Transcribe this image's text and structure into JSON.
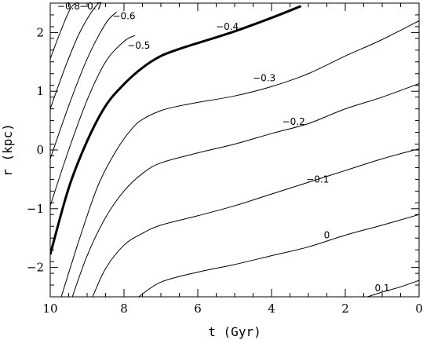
{
  "chart_data": {
    "type": "line",
    "title": "",
    "xlabel": "t (Gyr)",
    "ylabel": "r (kpc)",
    "xlim": [
      10,
      0
    ],
    "ylim": [
      -2.5,
      2.5
    ],
    "x_reversed": true,
    "x_ticks": [
      {
        "value": 10,
        "label": "10"
      },
      {
        "value": 8,
        "label": "8"
      },
      {
        "value": 6,
        "label": "6"
      },
      {
        "value": 4,
        "label": "4"
      },
      {
        "value": 2,
        "label": "2"
      },
      {
        "value": 0,
        "label": "0"
      }
    ],
    "y_ticks": [
      {
        "value": 2,
        "label": "2"
      },
      {
        "value": 1,
        "label": "1"
      },
      {
        "value": 0,
        "label": "0"
      },
      {
        "value": -1,
        "label": "−1"
      },
      {
        "value": -2,
        "label": "−2"
      }
    ],
    "series": [
      {
        "label": "−0.8",
        "label_at": [
          9.5,
          2.6
        ],
        "bold": false,
        "x": [
          10.0,
          9.7,
          9.4,
          9.0
        ],
        "y": [
          1.55,
          2.05,
          2.45,
          2.6
        ]
      },
      {
        "label": "−0.7",
        "label_at": [
          8.9,
          2.6
        ],
        "bold": false,
        "x": [
          10.0,
          9.6,
          9.2,
          8.8,
          8.5
        ],
        "y": [
          0.7,
          1.4,
          2.0,
          2.42,
          2.6
        ]
      },
      {
        "label": "−0.6",
        "label_at": [
          8.0,
          2.28
        ],
        "bold": false,
        "x": [
          10.0,
          9.5,
          9.0,
          8.5,
          8.2
        ],
        "y": [
          -0.15,
          0.75,
          1.55,
          2.15,
          2.35
        ]
      },
      {
        "label": "−0.5",
        "label_at": [
          7.6,
          1.78
        ],
        "bold": false,
        "x": [
          10.0,
          9.5,
          9.0,
          8.5,
          8.0,
          7.7
        ],
        "y": [
          -0.95,
          0.0,
          0.85,
          1.5,
          1.85,
          1.95
        ]
      },
      {
        "label": "−0.4",
        "label_at": [
          5.2,
          2.1
        ],
        "bold": true,
        "x": [
          10.0,
          9.5,
          9.0,
          8.5,
          8.0,
          7.5,
          7.0,
          6.5,
          6.0,
          5.0,
          4.0,
          3.2
        ],
        "y": [
          -1.78,
          -0.65,
          0.15,
          0.75,
          1.12,
          1.4,
          1.6,
          1.72,
          1.82,
          2.02,
          2.25,
          2.45
        ]
      },
      {
        "label": "−0.3",
        "label_at": [
          4.2,
          1.22
        ],
        "bold": false,
        "x": [
          9.7,
          9.2,
          8.7,
          8.2,
          7.8,
          7.5,
          7.0,
          6.5,
          6.0,
          5.0,
          4.0,
          3.0,
          2.0,
          1.0,
          0.0
        ],
        "y": [
          -2.5,
          -1.5,
          -0.6,
          0.0,
          0.35,
          0.52,
          0.67,
          0.75,
          0.81,
          0.92,
          1.08,
          1.3,
          1.6,
          1.88,
          2.2
        ]
      },
      {
        "label": "−0.2",
        "label_at": [
          3.4,
          0.48
        ],
        "bold": false,
        "x": [
          9.4,
          9.0,
          8.5,
          8.0,
          7.5,
          7.0,
          6.0,
          5.0,
          4.0,
          3.0,
          2.0,
          1.0,
          0.0
        ],
        "y": [
          -2.5,
          -1.8,
          -1.15,
          -0.7,
          -0.4,
          -0.22,
          -0.05,
          0.1,
          0.28,
          0.45,
          0.7,
          0.9,
          1.13
        ]
      },
      {
        "label": "−0.1",
        "label_at": [
          2.75,
          -0.5
        ],
        "bold": false,
        "x": [
          8.85,
          8.5,
          8.0,
          7.5,
          7.0,
          6.0,
          5.0,
          4.0,
          3.0,
          2.0,
          1.0,
          0.0
        ],
        "y": [
          -2.5,
          -2.02,
          -1.62,
          -1.42,
          -1.28,
          -1.12,
          -0.95,
          -0.75,
          -0.55,
          -0.35,
          -0.15,
          0.02
        ]
      },
      {
        "label": "0",
        "label_at": [
          2.5,
          -1.45
        ],
        "bold": false,
        "x": [
          7.6,
          7.0,
          6.0,
          5.0,
          4.0,
          3.0,
          2.0,
          1.0,
          0.0
        ],
        "y": [
          -2.5,
          -2.25,
          -2.08,
          -1.95,
          -1.8,
          -1.65,
          -1.45,
          -1.28,
          -1.1
        ]
      },
      {
        "label": "0.1",
        "label_at": [
          1.0,
          -2.35
        ],
        "bold": false,
        "x": [
          1.4,
          1.0,
          0.5,
          0.0
        ],
        "y": [
          -2.5,
          -2.42,
          -2.33,
          -2.22
        ]
      }
    ]
  }
}
